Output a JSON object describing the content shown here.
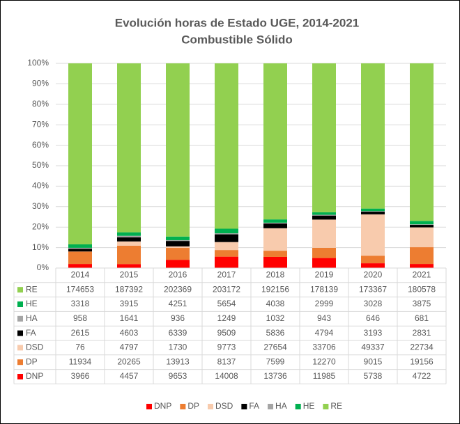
{
  "chart_data": {
    "type": "bar",
    "stacking": "percent",
    "title": "Evolución horas de Estado UGE, 2014-2021",
    "subtitle": "Combustible Sólido",
    "categories": [
      "2014",
      "2015",
      "2016",
      "2017",
      "2018",
      "2019",
      "2020",
      "2021"
    ],
    "series": [
      {
        "name": "DNP",
        "color": "#ff0000",
        "values": [
          3966,
          4457,
          9653,
          14008,
          13736,
          11985,
          5738,
          4722
        ]
      },
      {
        "name": "DP",
        "color": "#ed7d31",
        "values": [
          11934,
          20265,
          13913,
          8137,
          7599,
          12270,
          9015,
          19156
        ]
      },
      {
        "name": "DSD",
        "color": "#f8cbad",
        "values": [
          76,
          4797,
          1730,
          9773,
          27654,
          33706,
          49337,
          22734
        ]
      },
      {
        "name": "FA",
        "color": "#000000",
        "values": [
          2615,
          4603,
          6339,
          9509,
          5836,
          4794,
          3193,
          2831
        ]
      },
      {
        "name": "HA",
        "color": "#a5a5a5",
        "values": [
          958,
          1641,
          936,
          1249,
          1032,
          943,
          646,
          681
        ]
      },
      {
        "name": "HE",
        "color": "#00b050",
        "values": [
          3318,
          3915,
          4251,
          5654,
          4038,
          2999,
          3028,
          3875
        ]
      },
      {
        "name": "RE",
        "color": "#92d050",
        "values": [
          174653,
          187392,
          202369,
          203172,
          192156,
          178139,
          173367,
          180578
        ]
      }
    ],
    "ylim": [
      0,
      100
    ],
    "yticks": [
      {
        "value": 0,
        "label": "0%"
      },
      {
        "value": 10,
        "label": "10%"
      },
      {
        "value": 20,
        "label": "20%"
      },
      {
        "value": 30,
        "label": "30%"
      },
      {
        "value": 40,
        "label": "40%"
      },
      {
        "value": 50,
        "label": "50%"
      },
      {
        "value": 60,
        "label": "60%"
      },
      {
        "value": 70,
        "label": "70%"
      },
      {
        "value": 80,
        "label": "80%"
      },
      {
        "value": 90,
        "label": "90%"
      },
      {
        "value": 100,
        "label": "100%"
      }
    ],
    "grid": true,
    "data_table": true,
    "legend": "bottom"
  }
}
